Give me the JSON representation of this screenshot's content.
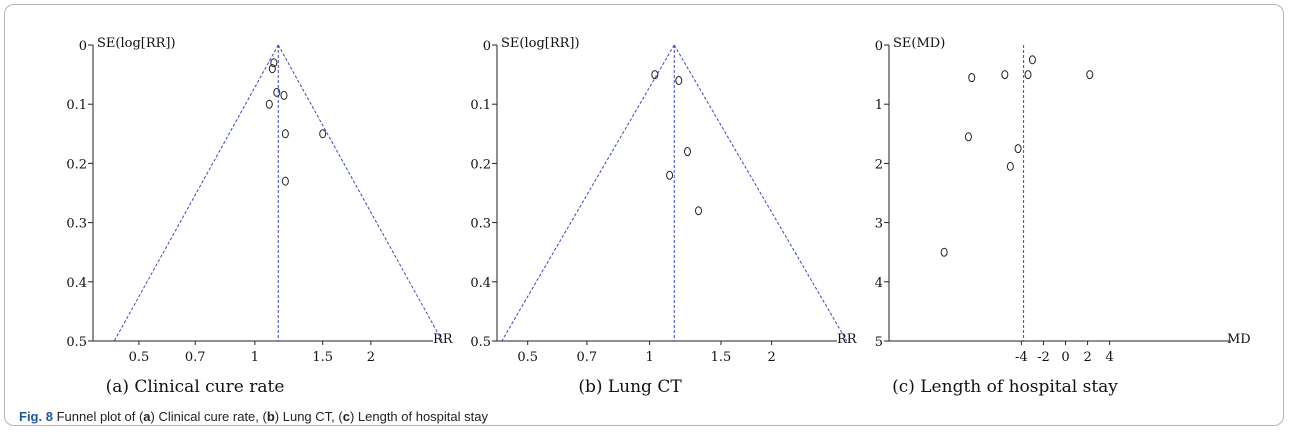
{
  "caption": {
    "fig_label": "Fig. 8",
    "text": " Funnel plot of (a) Clinical cure rate, (b) Lung CT, (c) Length of hospital stay",
    "parts": [
      "Funnel plot of (",
      "a",
      ") Clinical cure rate, (",
      "b",
      ") Lung CT, (",
      "c",
      ") Length of hospital stay"
    ]
  },
  "colors": {
    "funnel_blue": "#3a46c8",
    "funnel_light": "#9da6ea",
    "border": "#b5b5b5",
    "caption_label": "#1e57a5"
  },
  "chart_data": [
    {
      "type": "scatter",
      "subcaption": "(a) Clinical cure rate",
      "ylabel": "SE(log[RR])",
      "xlabel": "RR",
      "x_scale": "log",
      "x_ticks": [
        0.5,
        0.7,
        1,
        1.5,
        2
      ],
      "x_tick_labels": [
        "0.5",
        "0.7",
        "1",
        "1.5",
        "2"
      ],
      "y_ticks": [
        0,
        0.1,
        0.2,
        0.3,
        0.4,
        0.5
      ],
      "y_tick_labels": [
        "0",
        "0.1",
        "0.2",
        "0.3",
        "0.4",
        "0.5"
      ],
      "ylim": [
        0,
        0.5
      ],
      "y_reversed": true,
      "pooled_estimate": 1.15,
      "funnel": true,
      "points": [
        {
          "x": 1.12,
          "y": 0.03
        },
        {
          "x": 1.11,
          "y": 0.04
        },
        {
          "x": 1.14,
          "y": 0.08
        },
        {
          "x": 1.19,
          "y": 0.085
        },
        {
          "x": 1.09,
          "y": 0.1
        },
        {
          "x": 1.2,
          "y": 0.15
        },
        {
          "x": 1.5,
          "y": 0.15
        },
        {
          "x": 1.2,
          "y": 0.23
        }
      ]
    },
    {
      "type": "scatter",
      "subcaption": "(b) Lung CT",
      "ylabel": "SE(log[RR])",
      "xlabel": "RR",
      "x_scale": "log",
      "x_ticks": [
        0.5,
        0.7,
        1,
        1.5,
        2
      ],
      "x_tick_labels": [
        "0.5",
        "0.7",
        "1",
        "1.5",
        "2"
      ],
      "y_ticks": [
        0,
        0.1,
        0.2,
        0.3,
        0.4,
        0.5
      ],
      "y_tick_labels": [
        "0",
        "0.1",
        "0.2",
        "0.3",
        "0.4",
        "0.5"
      ],
      "ylim": [
        0,
        0.5
      ],
      "y_reversed": true,
      "pooled_estimate": 1.15,
      "funnel": true,
      "points": [
        {
          "x": 1.03,
          "y": 0.05
        },
        {
          "x": 1.18,
          "y": 0.06
        },
        {
          "x": 1.24,
          "y": 0.18
        },
        {
          "x": 1.12,
          "y": 0.22
        },
        {
          "x": 1.32,
          "y": 0.28
        }
      ]
    },
    {
      "type": "scatter",
      "subcaption": "(c) Length of hospital stay",
      "ylabel": "SE(MD)",
      "xlabel": "MD",
      "x_scale": "linear",
      "x_ticks": [
        -4,
        -2,
        0,
        2,
        4
      ],
      "x_tick_labels": [
        "-4",
        "-2",
        "0",
        "2",
        "4"
      ],
      "y_ticks": [
        0,
        1,
        2,
        3,
        4,
        5
      ],
      "y_tick_labels": [
        "0",
        "1",
        "2",
        "3",
        "4",
        "5"
      ],
      "ylim": [
        0,
        5
      ],
      "y_reversed": true,
      "pooled_estimate": -3.8,
      "funnel": false,
      "points": [
        {
          "x": -3.0,
          "y": 0.25
        },
        {
          "x": -3.4,
          "y": 0.5
        },
        {
          "x": -5.5,
          "y": 0.5
        },
        {
          "x": -8.5,
          "y": 0.55
        },
        {
          "x": 2.2,
          "y": 0.5
        },
        {
          "x": -8.8,
          "y": 1.55
        },
        {
          "x": -4.3,
          "y": 1.75
        },
        {
          "x": -5.0,
          "y": 2.05
        },
        {
          "x": -11.0,
          "y": 3.5
        }
      ]
    }
  ]
}
